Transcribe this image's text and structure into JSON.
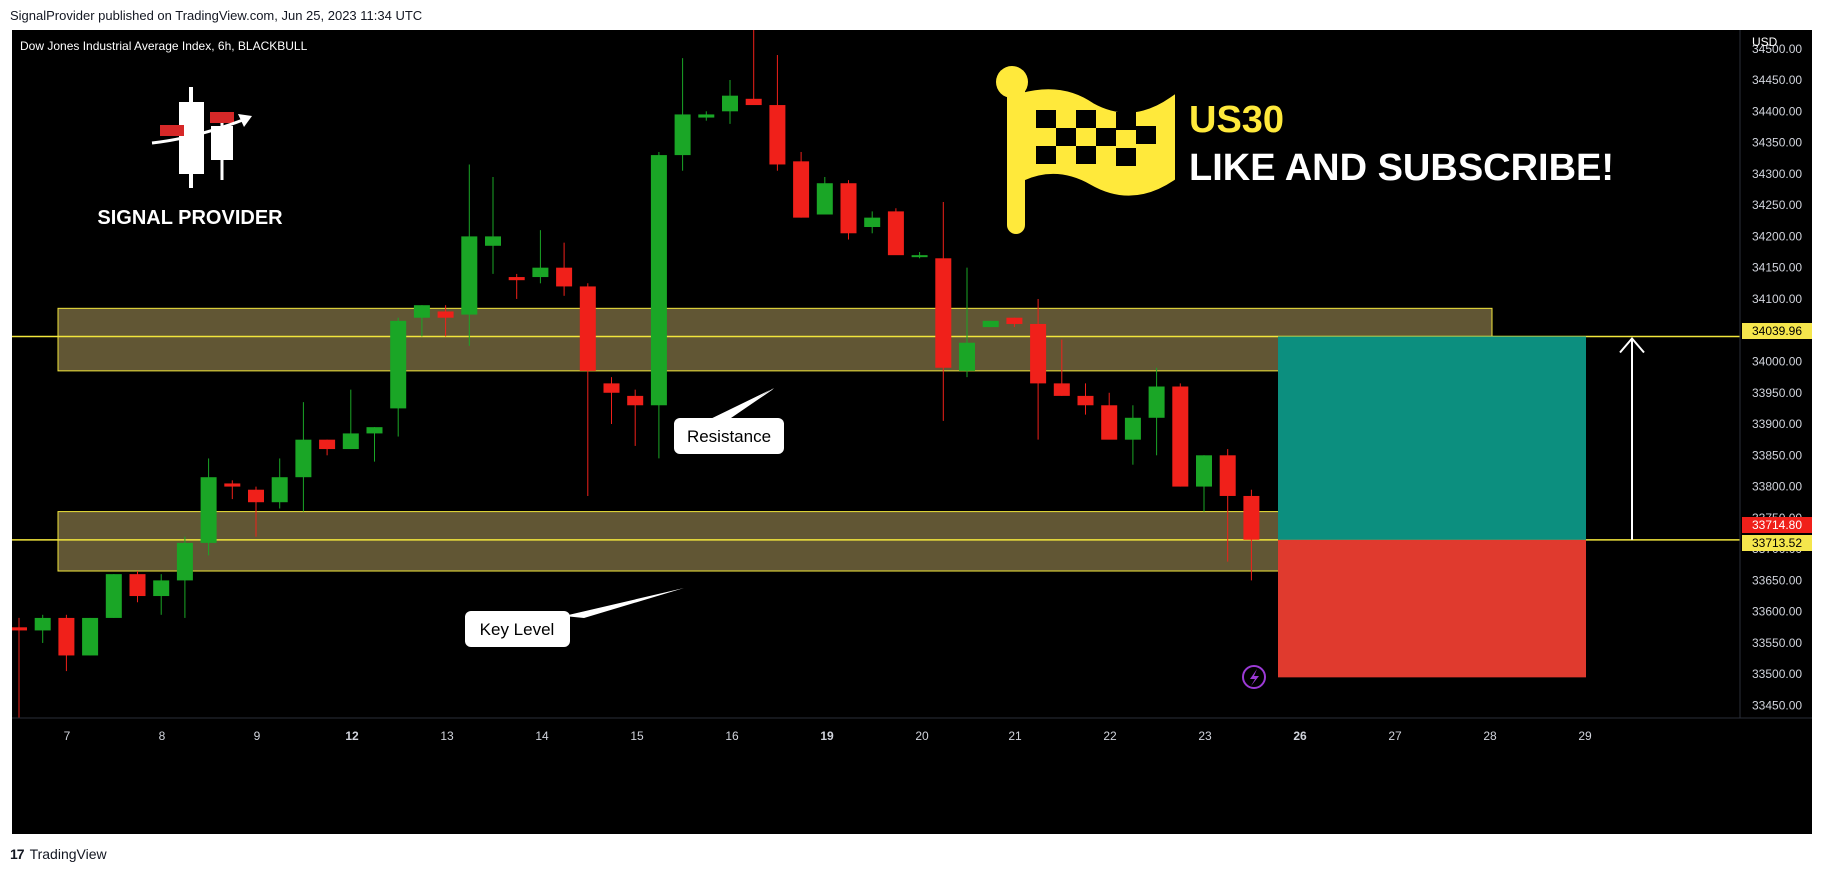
{
  "header": {
    "published_line": "SignalProvider published on TradingView.com, Jun 25, 2023 11:34 UTC"
  },
  "chart": {
    "symbol_line": "Dow Jones Industrial Average Index, 6h, BLACKBULL",
    "currency": "USD",
    "logo_text": "SIGNAL PROVIDER",
    "headline_symbol": "US30",
    "headline_cta": "LIKE AND SUBSCRIBE!",
    "callouts": {
      "resistance": "Resistance",
      "key_level": "Key Level"
    },
    "price_tags": {
      "upper": "34039.96",
      "current": "33714.80",
      "lower": "33713.52"
    },
    "colors": {
      "up": "#1aa626",
      "down": "#f0201a",
      "zone_fill": "#6b5f3a",
      "zone_border": "#f2e63c",
      "target": "#0c8f7f",
      "stop": "#e03a2e",
      "flag": "#ffe93b"
    },
    "icons": [
      "flag-icon",
      "lightning-icon",
      "signal-provider-logo"
    ]
  },
  "footer": {
    "brand": "TradingView",
    "logo": "17"
  },
  "chart_data": {
    "type": "candlestick",
    "title": "Dow Jones Industrial Average Index, 6h, BLACKBULL",
    "x_tick_labels": [
      "7",
      "8",
      "9",
      "12",
      "13",
      "14",
      "15",
      "16",
      "19",
      "20",
      "21",
      "22",
      "23",
      "26",
      "27",
      "28",
      "29"
    ],
    "y_tick_labels": [
      "34500.00",
      "34450.00",
      "34400.00",
      "34350.00",
      "34300.00",
      "34250.00",
      "34200.00",
      "34150.00",
      "34100.00",
      "34050.00",
      "34000.00",
      "33950.00",
      "33900.00",
      "33850.00",
      "33800.00",
      "33750.00",
      "33700.00",
      "33650.00",
      "33600.00",
      "33550.00",
      "33500.00",
      "33450.00"
    ],
    "ylim": [
      33430,
      34530
    ],
    "y_ticks": [
      34500,
      34450,
      34400,
      34350,
      34300,
      34250,
      34200,
      34150,
      34100,
      34050,
      34000,
      33950,
      33900,
      33850,
      33800,
      33750,
      33700,
      33650,
      33600,
      33550,
      33500,
      33450
    ],
    "ohlc": [
      [
        33575,
        33590,
        33430,
        33570
      ],
      [
        33570,
        33595,
        33550,
        33590
      ],
      [
        33590,
        33595,
        33505,
        33530
      ],
      [
        33530,
        33590,
        33530,
        33590
      ],
      [
        33590,
        33660,
        33590,
        33660
      ],
      [
        33660,
        33665,
        33615,
        33625
      ],
      [
        33625,
        33660,
        33595,
        33650
      ],
      [
        33650,
        33720,
        33590,
        33710
      ],
      [
        33710,
        33845,
        33690,
        33815
      ],
      [
        33805,
        33810,
        33780,
        33800
      ],
      [
        33795,
        33800,
        33720,
        33775
      ],
      [
        33775,
        33845,
        33765,
        33815
      ],
      [
        33815,
        33935,
        33760,
        33875
      ],
      [
        33875,
        33875,
        33850,
        33860
      ],
      [
        33860,
        33955,
        33860,
        33885
      ],
      [
        33885,
        33895,
        33840,
        33895
      ],
      [
        33925,
        34070,
        33880,
        34065
      ],
      [
        34070,
        34090,
        34040,
        34090
      ],
      [
        34080,
        34090,
        34040,
        34070
      ],
      [
        34075,
        34315,
        34025,
        34200
      ],
      [
        34185,
        34295,
        34140,
        34200
      ],
      [
        34135,
        34140,
        34100,
        34130
      ],
      [
        34135,
        34210,
        34125,
        34150
      ],
      [
        34150,
        34190,
        34105,
        34120
      ],
      [
        34120,
        34125,
        33785,
        33985
      ],
      [
        33965,
        33975,
        33900,
        33950
      ],
      [
        33945,
        33955,
        33865,
        33930
      ],
      [
        33930,
        34335,
        33845,
        34330
      ],
      [
        34330,
        34485,
        34305,
        34395
      ],
      [
        34390,
        34400,
        34385,
        34395
      ],
      [
        34400,
        34450,
        34380,
        34425
      ],
      [
        34420,
        34530,
        34415,
        34410
      ],
      [
        34410,
        34490,
        34305,
        34315
      ],
      [
        34320,
        34335,
        34230,
        34230
      ],
      [
        34235,
        34295,
        34235,
        34285
      ],
      [
        34285,
        34290,
        34195,
        34205
      ],
      [
        34215,
        34240,
        34205,
        34230
      ],
      [
        34240,
        34245,
        34180,
        34170
      ],
      [
        34170,
        34175,
        34165,
        34170
      ],
      [
        34165,
        34255,
        33905,
        33990
      ],
      [
        33985,
        34150,
        33975,
        34030
      ],
      [
        34055,
        34065,
        34055,
        34065
      ],
      [
        34070,
        34070,
        34055,
        34060
      ],
      [
        34060,
        34100,
        33875,
        33965
      ],
      [
        33965,
        34035,
        33945,
        33945
      ],
      [
        33945,
        33965,
        33915,
        33930
      ],
      [
        33930,
        33950,
        33885,
        33875
      ],
      [
        33875,
        33930,
        33835,
        33910
      ],
      [
        33910,
        33990,
        33850,
        33960
      ],
      [
        33960,
        33965,
        33800,
        33800
      ],
      [
        33800,
        33850,
        33760,
        33850
      ],
      [
        33850,
        33860,
        33680,
        33785
      ],
      [
        33785,
        33795,
        33650,
        33715
      ]
    ],
    "zones": [
      {
        "from": 33985,
        "to": 34085
      },
      {
        "from": 33665,
        "to": 33760
      }
    ],
    "levels": [
      34039.96,
      33714.8
    ],
    "position": {
      "entry": 33714.8,
      "target": 34039.96,
      "stop": 33495
    }
  }
}
